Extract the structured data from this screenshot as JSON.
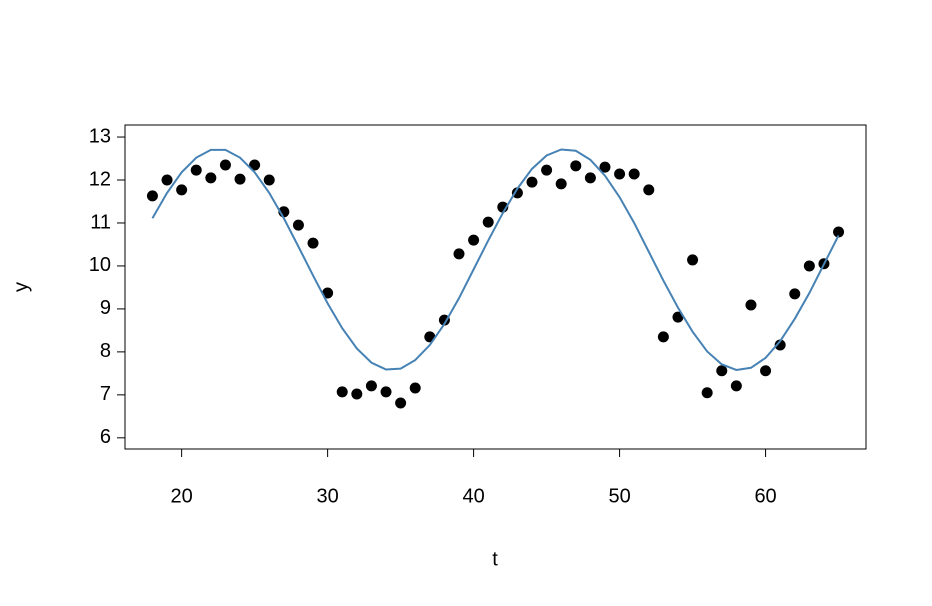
{
  "chart_data": {
    "type": "scatter",
    "x_label": "t",
    "y_label": "y",
    "x": [
      18,
      19,
      20,
      21,
      22,
      23,
      24,
      25,
      26,
      27,
      28,
      29,
      30,
      31,
      32,
      33,
      34,
      35,
      36,
      37,
      38,
      39,
      40,
      41,
      42,
      43,
      44,
      45,
      46,
      47,
      48,
      49,
      50,
      51,
      52,
      53,
      54,
      55,
      56,
      57,
      58,
      59,
      60,
      61,
      62,
      63,
      64,
      65
    ],
    "series": [
      {
        "type": "scatter",
        "color": "#000000",
        "values": [
          11.63,
          12.0,
          11.77,
          12.23,
          12.05,
          12.35,
          12.02,
          12.35,
          12.0,
          11.26,
          10.95,
          10.53,
          9.37,
          7.07,
          7.02,
          7.21,
          7.07,
          6.81,
          7.16,
          8.35,
          8.74,
          10.28,
          10.6,
          11.02,
          11.37,
          11.7,
          11.95,
          12.23,
          11.91,
          12.33,
          12.05,
          12.3,
          12.14,
          12.14,
          11.77,
          8.35,
          8.81,
          10.14,
          7.05,
          7.56,
          7.21,
          9.09,
          7.56,
          8.16,
          9.35,
          10.0,
          10.05,
          10.79
        ]
      },
      {
        "type": "line",
        "color": "#4682b4",
        "values": [
          11.11,
          11.7,
          12.18,
          12.52,
          12.7,
          12.7,
          12.52,
          12.18,
          11.7,
          11.11,
          10.45,
          9.78,
          9.13,
          8.55,
          8.08,
          7.75,
          7.59,
          7.61,
          7.81,
          8.16,
          8.65,
          9.25,
          9.92,
          10.59,
          11.23,
          11.8,
          12.26,
          12.57,
          12.71,
          12.68,
          12.47,
          12.1,
          11.6,
          11.0,
          10.33,
          9.66,
          9.03,
          8.47,
          8.01,
          7.71,
          7.58,
          7.63,
          7.86,
          8.25,
          8.77,
          9.37,
          10.04,
          10.71
        ]
      }
    ],
    "xlim": [
      16.12,
      66.88
    ],
    "xticks": [
      20,
      30,
      40,
      50,
      60
    ],
    "ylim": [
      5.74,
      13.28
    ],
    "yticks": [
      6,
      7,
      8,
      9,
      10,
      11,
      12,
      13
    ],
    "grid": false
  }
}
